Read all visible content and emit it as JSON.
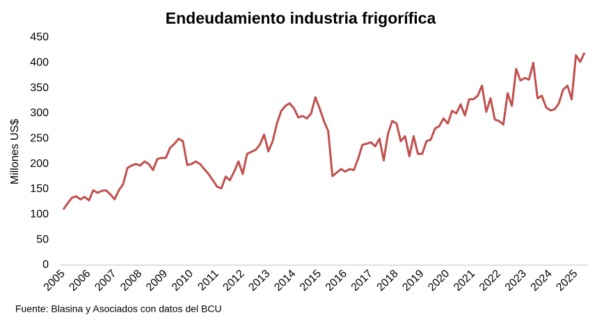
{
  "chart_data": {
    "type": "line",
    "title": "Endeudamiento industria frigorífica",
    "y_label": "Millones US$",
    "source": "Fuente: Blasina y Asociados con datos del BCU",
    "color": "#c0504d",
    "categories": [
      "2005",
      null,
      null,
      null,
      null,
      null,
      "2006",
      null,
      null,
      null,
      null,
      null,
      "2007",
      null,
      null,
      null,
      null,
      null,
      "2008",
      null,
      null,
      null,
      null,
      null,
      "2009",
      null,
      null,
      null,
      null,
      null,
      "2010",
      null,
      null,
      null,
      null,
      null,
      "2011",
      null,
      null,
      null,
      null,
      null,
      "2012",
      null,
      null,
      null,
      null,
      null,
      "2013",
      null,
      null,
      null,
      null,
      null,
      "2014",
      null,
      null,
      null,
      null,
      null,
      "2015",
      null,
      null,
      null,
      null,
      null,
      "2016",
      null,
      null,
      null,
      null,
      null,
      "2017",
      null,
      null,
      null,
      null,
      null,
      "2018",
      null,
      null,
      null,
      null,
      null,
      "2019",
      null,
      null,
      null,
      null,
      null,
      "2020",
      null,
      null,
      null,
      null,
      null,
      "2021",
      null,
      null,
      null,
      null,
      null,
      "2022",
      null,
      null,
      null,
      null,
      null,
      "2023",
      null,
      null,
      null,
      null,
      null,
      "2024",
      null,
      null,
      null,
      null,
      null,
      "2025",
      null,
      null
    ],
    "values": [
      110,
      122,
      133,
      136,
      130,
      135,
      128,
      148,
      143,
      147,
      148,
      140,
      130,
      148,
      160,
      192,
      197,
      200,
      197,
      205,
      200,
      188,
      210,
      212,
      212,
      232,
      240,
      250,
      245,
      198,
      200,
      205,
      200,
      190,
      180,
      168,
      155,
      152,
      175,
      168,
      185,
      205,
      180,
      220,
      224,
      228,
      238,
      258,
      225,
      245,
      280,
      305,
      315,
      320,
      310,
      292,
      295,
      290,
      300,
      332,
      310,
      285,
      265,
      176,
      183,
      190,
      185,
      190,
      188,
      210,
      238,
      240,
      243,
      235,
      250,
      207,
      260,
      285,
      280,
      245,
      255,
      215,
      255,
      220,
      220,
      245,
      248,
      270,
      275,
      290,
      280,
      305,
      300,
      318,
      296,
      328,
      328,
      335,
      355,
      303,
      330,
      288,
      285,
      278,
      340,
      315,
      388,
      365,
      370,
      367,
      400,
      330,
      335,
      312,
      306,
      308,
      320,
      347,
      355,
      328,
      415,
      402,
      420
    ],
    "ylim": [
      0,
      450
    ],
    "yticks": [
      0,
      50,
      100,
      150,
      200,
      250,
      300,
      350,
      400,
      450
    ]
  }
}
